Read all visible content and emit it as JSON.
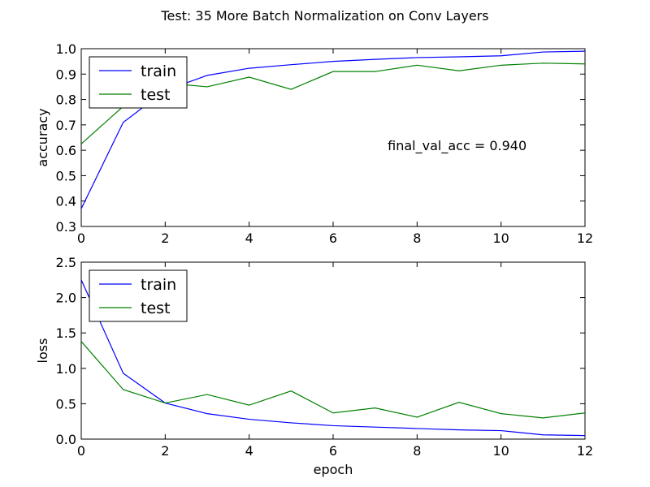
{
  "figure": {
    "suptitle": "Test: 35 More Batch Normalization on Conv Layers"
  },
  "chart_data": [
    {
      "type": "line",
      "id": "accuracy",
      "xlabel": "",
      "ylabel": "accuracy",
      "xlim": [
        0,
        12
      ],
      "ylim": [
        0.3,
        1.0
      ],
      "xticks": [
        0,
        2,
        4,
        6,
        8,
        10,
        12
      ],
      "yticks": [
        0.3,
        0.4,
        0.5,
        0.6,
        0.7,
        0.8,
        0.9,
        1.0
      ],
      "xtick_labels": [
        "0",
        "2",
        "4",
        "6",
        "8",
        "10",
        "12"
      ],
      "ytick_labels": [
        "0.3",
        "0.4",
        "0.5",
        "0.6",
        "0.7",
        "0.8",
        "0.9",
        "1.0"
      ],
      "legend_placement": "upper left",
      "x": [
        0,
        1,
        2,
        3,
        4,
        5,
        6,
        7,
        8,
        9,
        10,
        11,
        12
      ],
      "series": [
        {
          "name": "train",
          "color": "#0000ff",
          "values": [
            0.37,
            0.71,
            0.835,
            0.895,
            0.923,
            0.937,
            0.95,
            0.958,
            0.965,
            0.968,
            0.972,
            0.987,
            0.99
          ]
        },
        {
          "name": "test",
          "color": "#008000",
          "values": [
            0.625,
            0.773,
            0.865,
            0.85,
            0.888,
            0.84,
            0.91,
            0.91,
            0.935,
            0.913,
            0.935,
            0.943,
            0.94
          ]
        }
      ],
      "annotations": [
        {
          "text": "final_val_acc = 0.940",
          "x": 7.3,
          "y": 0.62
        }
      ]
    },
    {
      "type": "line",
      "id": "loss",
      "xlabel": "epoch",
      "ylabel": "loss",
      "xlim": [
        0,
        12
      ],
      "ylim": [
        0.0,
        2.5
      ],
      "xticks": [
        0,
        2,
        4,
        6,
        8,
        10,
        12
      ],
      "yticks": [
        0.0,
        0.5,
        1.0,
        1.5,
        2.0,
        2.5
      ],
      "xtick_labels": [
        "0",
        "2",
        "4",
        "6",
        "8",
        "10",
        "12"
      ],
      "ytick_labels": [
        "0.0",
        "0.5",
        "1.0",
        "1.5",
        "2.0",
        "2.5"
      ],
      "legend_placement": "upper left",
      "x": [
        0,
        1,
        2,
        3,
        4,
        5,
        6,
        7,
        8,
        9,
        10,
        11,
        12
      ],
      "series": [
        {
          "name": "train",
          "color": "#0000ff",
          "values": [
            2.25,
            0.93,
            0.51,
            0.36,
            0.28,
            0.23,
            0.19,
            0.17,
            0.15,
            0.13,
            0.12,
            0.06,
            0.05
          ]
        },
        {
          "name": "test",
          "color": "#008000",
          "values": [
            1.38,
            0.7,
            0.51,
            0.63,
            0.48,
            0.68,
            0.37,
            0.44,
            0.31,
            0.52,
            0.36,
            0.3,
            0.37
          ]
        }
      ],
      "annotations": []
    }
  ]
}
